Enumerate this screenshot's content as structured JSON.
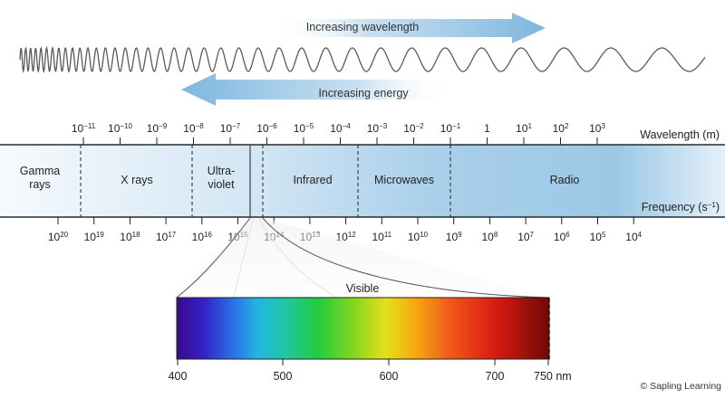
{
  "arrows": {
    "wavelength_label": "Increasing wavelength",
    "energy_label": "Increasing energy"
  },
  "axes": {
    "wavelength_title": "Wavelength (m)",
    "frequency_title": "Frequency (s",
    "frequency_title_exp": "−1",
    "frequency_title_close": ")"
  },
  "wavelength_ticks": [
    {
      "base": "10",
      "exp": "−11"
    },
    {
      "base": "10",
      "exp": "−10"
    },
    {
      "base": "10",
      "exp": "−9"
    },
    {
      "base": "10",
      "exp": "−8"
    },
    {
      "base": "10",
      "exp": "−7"
    },
    {
      "base": "10",
      "exp": "−6"
    },
    {
      "base": "10",
      "exp": "−5"
    },
    {
      "base": "10",
      "exp": "−4"
    },
    {
      "base": "10",
      "exp": "−3"
    },
    {
      "base": "10",
      "exp": "−2"
    },
    {
      "base": "10",
      "exp": "−1"
    },
    {
      "base": "1",
      "exp": ""
    },
    {
      "base": "10",
      "exp": "1"
    },
    {
      "base": "10",
      "exp": "2"
    },
    {
      "base": "10",
      "exp": "3"
    }
  ],
  "frequency_ticks": [
    {
      "base": "10",
      "exp": "20"
    },
    {
      "base": "10",
      "exp": "19"
    },
    {
      "base": "10",
      "exp": "18"
    },
    {
      "base": "10",
      "exp": "17"
    },
    {
      "base": "10",
      "exp": "16"
    },
    {
      "base": "10",
      "exp": "15"
    },
    {
      "base": "10",
      "exp": "14"
    },
    {
      "base": "10",
      "exp": "13"
    },
    {
      "base": "10",
      "exp": "12"
    },
    {
      "base": "10",
      "exp": "11"
    },
    {
      "base": "10",
      "exp": "10"
    },
    {
      "base": "10",
      "exp": "9"
    },
    {
      "base": "10",
      "exp": "8"
    },
    {
      "base": "10",
      "exp": "7"
    },
    {
      "base": "10",
      "exp": "6"
    },
    {
      "base": "10",
      "exp": "5"
    },
    {
      "base": "10",
      "exp": "4"
    }
  ],
  "regions": [
    {
      "id": "gamma",
      "lines": [
        "Gamma",
        "rays"
      ]
    },
    {
      "id": "xrays",
      "lines": [
        "X rays"
      ]
    },
    {
      "id": "ultraviolet",
      "lines": [
        "Ultra-",
        "violet"
      ]
    },
    {
      "id": "infrared",
      "lines": [
        "Infrared"
      ]
    },
    {
      "id": "microwaves",
      "lines": [
        "Microwaves"
      ]
    },
    {
      "id": "radio",
      "lines": [
        "Radio"
      ]
    }
  ],
  "visible": {
    "title": "Visible",
    "ticks": [
      "400",
      "500",
      "600",
      "700",
      "750 nm"
    ]
  },
  "credit": "© Sapling Learning",
  "colors": {
    "band_light": "#f4f9fd",
    "band_dark": "#8fbfe0",
    "arrow": "#8fc1e3",
    "wave": "#555555"
  }
}
